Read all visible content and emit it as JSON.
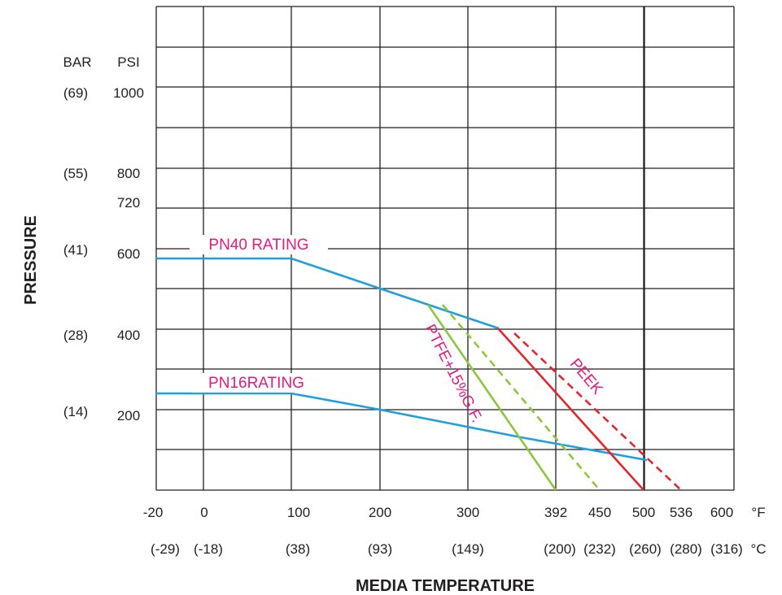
{
  "chart_data": {
    "type": "line",
    "ylabel": "PRESSURE",
    "xlabel": "MEDIA TEMPERATURE",
    "y_units": {
      "bar": "BAR",
      "psi": "PSI"
    },
    "x_units": {
      "f": "°F",
      "c": "°C"
    },
    "xlim": [
      -20,
      600
    ],
    "ylim": [
      0,
      1000
    ],
    "y_ticks": [
      {
        "psi": "1000",
        "bar": "(69)",
        "value": 1000
      },
      {
        "psi": "800",
        "bar": "(55)",
        "value": 800
      },
      {
        "psi": "720",
        "bar": "",
        "value": 720
      },
      {
        "psi": "600",
        "bar": "(41)",
        "value": 600
      },
      {
        "psi": "400",
        "bar": "(28)",
        "value": 400
      },
      {
        "psi": "200",
        "bar": "(14)",
        "value": 200
      }
    ],
    "x_ticks": [
      {
        "f": "-20",
        "c": "(-29)",
        "value": -20
      },
      {
        "f": "0",
        "c": "(-18)",
        "value": 0
      },
      {
        "f": "100",
        "c": "(38)",
        "value": 100
      },
      {
        "f": "200",
        "c": "(93)",
        "value": 200
      },
      {
        "f": "300",
        "c": "(149)",
        "value": 300
      },
      {
        "f": "392",
        "c": "(200)",
        "value": 392
      },
      {
        "f": "450",
        "c": "(232)",
        "value": 450
      },
      {
        "f": "500",
        "c": "(260)",
        "value": 500
      },
      {
        "f": "536",
        "c": "(280)",
        "value": 536
      },
      {
        "f": "600",
        "c": "(316)",
        "value": 600
      }
    ],
    "grid": true,
    "series": [
      {
        "name": "PN40 RATING",
        "color": "#1ea0e0",
        "style": "solid",
        "points": [
          [
            -20,
            575
          ],
          [
            100,
            575
          ],
          [
            200,
            500
          ],
          [
            340,
            400
          ]
        ]
      },
      {
        "name": "PN16RATING",
        "color": "#1ea0e0",
        "style": "solid",
        "points": [
          [
            -20,
            240
          ],
          [
            100,
            240
          ],
          [
            200,
            200
          ],
          [
            400,
            120
          ],
          [
            510,
            75
          ]
        ]
      },
      {
        "name": "PTFE+15%G.F.",
        "color": "#8dc63f",
        "style": "solid",
        "points": [
          [
            255,
            460
          ],
          [
            392,
            0
          ]
        ]
      },
      {
        "name": "",
        "color": "#8dc63f",
        "style": "dashed",
        "points": [
          [
            290,
            460
          ],
          [
            450,
            0
          ]
        ]
      },
      {
        "name": "",
        "color": "#e4262d",
        "style": "solid",
        "points": [
          [
            340,
            400
          ],
          [
            500,
            0
          ]
        ]
      },
      {
        "name": "PEEK",
        "color": "#e4262d",
        "style": "dashed",
        "points": [
          [
            355,
            395
          ],
          [
            536,
            0
          ]
        ]
      }
    ]
  }
}
